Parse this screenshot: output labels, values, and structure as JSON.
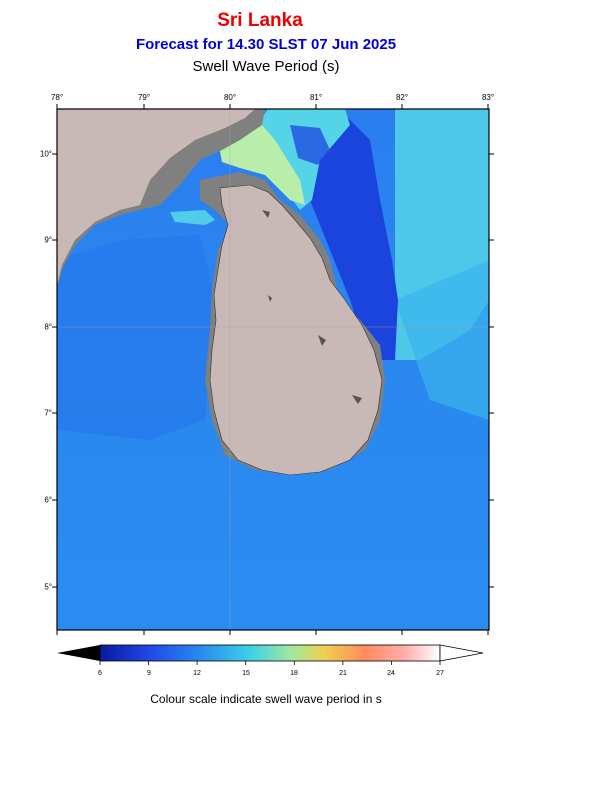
{
  "header": {
    "title": "Sri Lanka",
    "subtitle": "Forecast for  14.30 SLST 07 Jun 2025",
    "parameter": "Swell Wave Period (s)"
  },
  "axes": {
    "lon_ticks": [
      "78°",
      "79°",
      "80°",
      "81°",
      "82°",
      "83°"
    ],
    "lat_ticks": [
      "10°",
      "9°",
      "8°",
      "7°",
      "6°",
      "5°"
    ]
  },
  "colorbar": {
    "ticks": [
      "6",
      "9",
      "12",
      "15",
      "18",
      "21",
      "24",
      "27"
    ],
    "colors": [
      "#000000",
      "#0a1a9a",
      "#1f47e6",
      "#2a8cf0",
      "#3bd0e8",
      "#9fe8a0",
      "#f0d050",
      "#ff8a60",
      "#ffb0b0",
      "#ffffff"
    ]
  },
  "caption": "Colour scale indicate swell wave period in s",
  "legend_colors": {
    "land": "#c9b9b6",
    "shallow_mask": "#808080",
    "sea_default": "#2a86ee",
    "sea_deep_blue": "#1844dd",
    "sea_cyan": "#55d4e8",
    "sea_green": "#b8eeaa"
  }
}
